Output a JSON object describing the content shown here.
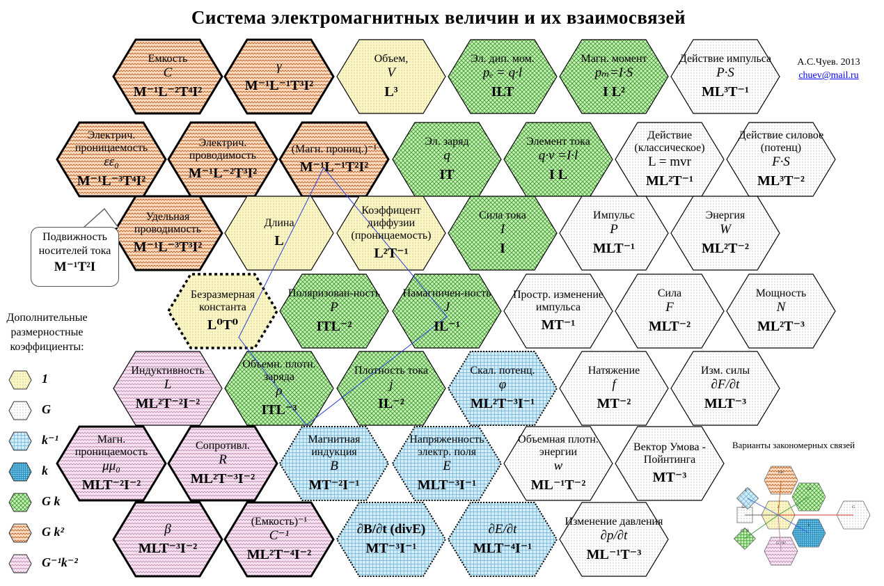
{
  "title": "Система электромагнитных  величин и их взаимосвязей",
  "author": {
    "name": "А.С.Чуев. 2013",
    "email": "chuev@mail.ru"
  },
  "callout": {
    "name": "Подвижность носителей тока",
    "dim": "M⁻¹T²I"
  },
  "legend": {
    "title": "Дополнительные размерностные коэффициенты:",
    "items": [
      {
        "label": "1",
        "pattern": "dots-yellow"
      },
      {
        "label": "G",
        "pattern": "dots-gray"
      },
      {
        "label": "k⁻¹",
        "pattern": "grid-blue"
      },
      {
        "label": "k",
        "pattern": "grid-blue-dense"
      },
      {
        "label": "G k",
        "pattern": "cross-green"
      },
      {
        "label": "G k²",
        "pattern": "wave-orange"
      },
      {
        "label": "G⁻¹k⁻²",
        "pattern": "wave-pink"
      }
    ]
  },
  "variants_title": "Варианты закономерных связей",
  "hexes": [
    {
      "name": "Емкость",
      "sym": "C",
      "dim": "M⁻¹L⁻²T⁴I²",
      "pattern": "wave-orange",
      "border": "thick"
    },
    {
      "name": "",
      "sym": "γ",
      "dim": "M⁻¹L⁻¹T³I²",
      "pattern": "wave-orange",
      "border": "thick"
    },
    {
      "name": "Объем,",
      "sym": "V",
      "dim": "L³",
      "pattern": "dots-yellow",
      "border": "thin"
    },
    {
      "name": "Эл. дип. мом.",
      "sym": "pₑ = q·l",
      "dim": "ILT",
      "pattern": "cross-green",
      "border": "thin"
    },
    {
      "name": "Магн. момент",
      "sym": "pₘ=I·S",
      "dim": "I L²",
      "pattern": "cross-green",
      "border": "thin"
    },
    {
      "name": "Действие импульса",
      "sym": "P·S",
      "dim": "ML³T⁻¹",
      "pattern": "dots-gray",
      "border": "thin"
    },
    {
      "name": "Электрич. проницаемость",
      "sym": "εε₀",
      "dim": "M⁻¹L⁻³T⁴I²",
      "pattern": "wave-orange",
      "border": "thick"
    },
    {
      "name": "Электрич. проводимость",
      "sym": "",
      "dim": "M⁻¹L⁻²T³I²",
      "pattern": "wave-orange",
      "border": "thick"
    },
    {
      "name": "(Магн. прониц.)⁻¹",
      "sym": "",
      "dim": "M⁻¹L⁻¹T²I²",
      "pattern": "wave-orange",
      "border": "thick"
    },
    {
      "name": "Эл. заряд",
      "sym": "q",
      "dim": "IT",
      "pattern": "cross-green",
      "border": "thin"
    },
    {
      "name": "Элемент тока",
      "sym": "q·v =I·l",
      "dim": "I L",
      "pattern": "cross-green",
      "border": "thin"
    },
    {
      "name": "Действие (классическое)",
      "sym": "L = mvr",
      "dim": "ML²T⁻¹",
      "pattern": "dots-gray",
      "border": "thin"
    },
    {
      "name": "Действие силовое (потенц)",
      "sym": "F·S",
      "dim": "ML³T⁻²",
      "pattern": "dots-gray",
      "border": "thin"
    },
    {
      "name": "Удельная проводимость",
      "sym": "",
      "dim": "M⁻¹L⁻³T³I²",
      "pattern": "wave-orange",
      "border": "thick"
    },
    {
      "name": "Длина",
      "sym": "",
      "dim": "L",
      "pattern": "dots-yellow",
      "border": "thin"
    },
    {
      "name": "Коэффицент диффузии (проницаемость)",
      "sym": "",
      "dim": "L²T⁻¹",
      "pattern": "dots-yellow",
      "border": "thin"
    },
    {
      "name": "Сила тока",
      "sym": "I",
      "dim": "I",
      "pattern": "cross-green",
      "border": "thin"
    },
    {
      "name": "Импульс",
      "sym": "P",
      "dim": "MLT⁻¹",
      "pattern": "dots-gray",
      "border": "thin"
    },
    {
      "name": "Энергия",
      "sym": "W",
      "dim": "ML²T⁻²",
      "pattern": "dots-gray",
      "border": "thin"
    },
    {
      "name": "Безразмерная константа",
      "sym": "",
      "dim": "L⁰T⁰",
      "pattern": "dots-yellow",
      "border": "dashed-thick"
    },
    {
      "name": "Поляризован-ность",
      "sym": "P",
      "dim": "ITL⁻²",
      "pattern": "cross-green",
      "border": "thin"
    },
    {
      "name": "Намагничен-ность",
      "sym": "J",
      "dim": "IL⁻¹",
      "pattern": "cross-green",
      "border": "thin"
    },
    {
      "name": "Простр. изменение импульса",
      "sym": "",
      "dim": "MT⁻¹",
      "pattern": "dots-gray",
      "border": "thin"
    },
    {
      "name": "Сила",
      "sym": "F",
      "dim": "MLT⁻²",
      "pattern": "dots-gray",
      "border": "thin"
    },
    {
      "name": "Мощность",
      "sym": "N",
      "dim": "ML²T⁻³",
      "pattern": "dots-gray",
      "border": "thin"
    },
    {
      "name": "Индуктивность",
      "sym": "L",
      "dim": "ML²T⁻²I⁻²",
      "pattern": "wave-pink",
      "border": "thin"
    },
    {
      "name": "Объемн. плотн. заряда",
      "sym": "ρ",
      "dim": "ITL⁻³",
      "pattern": "cross-green",
      "border": "thin"
    },
    {
      "name": "Плотность тока",
      "sym": "j",
      "dim": "IL⁻²",
      "pattern": "cross-green",
      "border": "thin"
    },
    {
      "name": "Скал. потенц.",
      "sym": "φ",
      "dim": "ML²T⁻³I⁻¹",
      "pattern": "grid-blue",
      "border": "dotted"
    },
    {
      "name": "Натяжение",
      "sym": "f",
      "dim": "MT⁻²",
      "pattern": "dots-gray",
      "border": "thin"
    },
    {
      "name": "Изм. силы",
      "sym": "∂F/∂t",
      "dim": "MLT⁻³",
      "pattern": "dots-gray",
      "border": "thin"
    },
    {
      "name": "Магн. проницаемость",
      "sym": "μμ₀",
      "dim": "MLT⁻²I⁻²",
      "pattern": "wave-pink",
      "border": "thick"
    },
    {
      "name": "Сопротивл.",
      "sym": "R",
      "dim": "ML²T⁻³I⁻²",
      "pattern": "wave-pink",
      "border": "thick"
    },
    {
      "name": "Магнитная индукция",
      "sym": "B",
      "dim": "MT⁻²I⁻¹",
      "pattern": "grid-blue",
      "border": "dotted"
    },
    {
      "name": "Напряженность электр. поля",
      "sym": "E",
      "dim": "MLT⁻³I⁻¹",
      "pattern": "grid-blue",
      "border": "dotted"
    },
    {
      "name": "Объемная плотн. энергии",
      "sym": "w",
      "dim": "ML⁻¹T⁻²",
      "pattern": "dots-gray",
      "border": "thin"
    },
    {
      "name": "Вектор Умова - Пойнтинга",
      "sym": "",
      "dim": "MT⁻³",
      "pattern": "dots-gray",
      "border": "thin"
    },
    {
      "name": "",
      "sym": "β",
      "dim": "MLT⁻³I⁻²",
      "pattern": "wave-pink",
      "border": "thick"
    },
    {
      "name": "(Емкость)⁻¹",
      "sym": "C⁻¹",
      "dim": "ML²T⁻⁴I⁻²",
      "pattern": "wave-pink",
      "border": "thick"
    },
    {
      "name": "",
      "sym": "∂B/∂t (divE)",
      "dim": "MT⁻³I⁻¹",
      "pattern": "grid-blue",
      "border": "dotted"
    },
    {
      "name": "",
      "sym": "∂E/∂t",
      "dim": "MLT⁻⁴I⁻¹",
      "pattern": "grid-blue",
      "border": "dotted"
    },
    {
      "name": "Изменение давления",
      "sym": "∂p/∂t",
      "dim": "ML⁻¹T⁻³",
      "pattern": "dots-gray",
      "border": "thin"
    }
  ],
  "variants": [
    "Gk²",
    "Gk",
    "k",
    "G⁻¹",
    "1",
    "G",
    "G⁻¹k",
    "k⁻¹",
    "G⁻¹k²"
  ]
}
